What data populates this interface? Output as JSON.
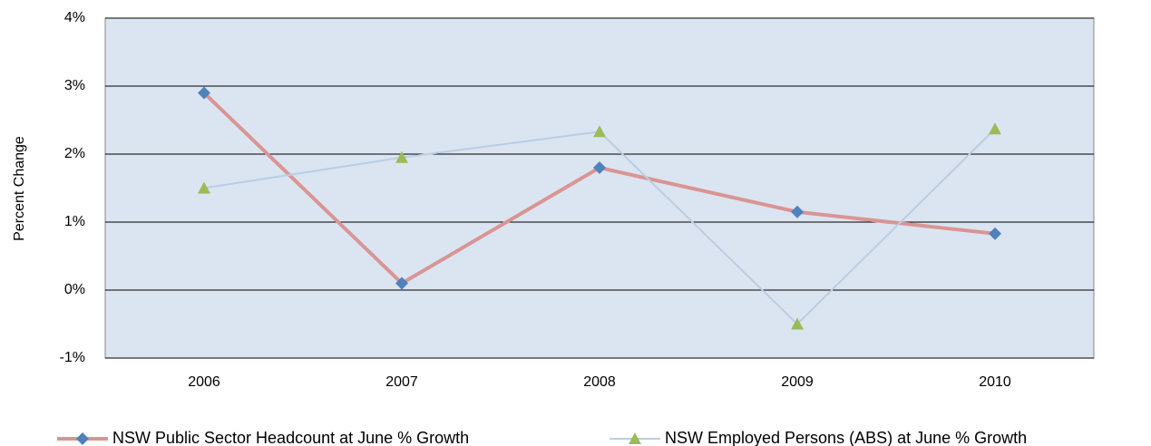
{
  "chart_data": {
    "type": "line",
    "y_label": "Percent Change",
    "categories": [
      "2006",
      "2007",
      "2008",
      "2009",
      "2010"
    ],
    "series": [
      {
        "name": "NSW Public Sector Headcount at June % Growth",
        "color": "#d99594",
        "marker_color": "#4f81bd",
        "marker": "diamond",
        "values": [
          2.9,
          0.1,
          1.8,
          1.15,
          0.83
        ]
      },
      {
        "name": "NSW Employed Persons (ABS) at June % Growth",
        "color": "#b9cde5",
        "marker_color": "#9bbb59",
        "marker": "triangle",
        "values": [
          1.5,
          1.95,
          2.33,
          -0.5,
          2.37
        ]
      }
    ],
    "ylim": [
      -1,
      4
    ],
    "yticks": [
      {
        "value": -1,
        "label": "-1%"
      },
      {
        "value": 0,
        "label": "0%"
      },
      {
        "value": 1,
        "label": "1%"
      },
      {
        "value": 2,
        "label": "2%"
      },
      {
        "value": 3,
        "label": "3%"
      },
      {
        "value": 4,
        "label": "4%"
      }
    ],
    "grid": true,
    "legend": "bottom",
    "plot_background": "#dbe5f1"
  }
}
